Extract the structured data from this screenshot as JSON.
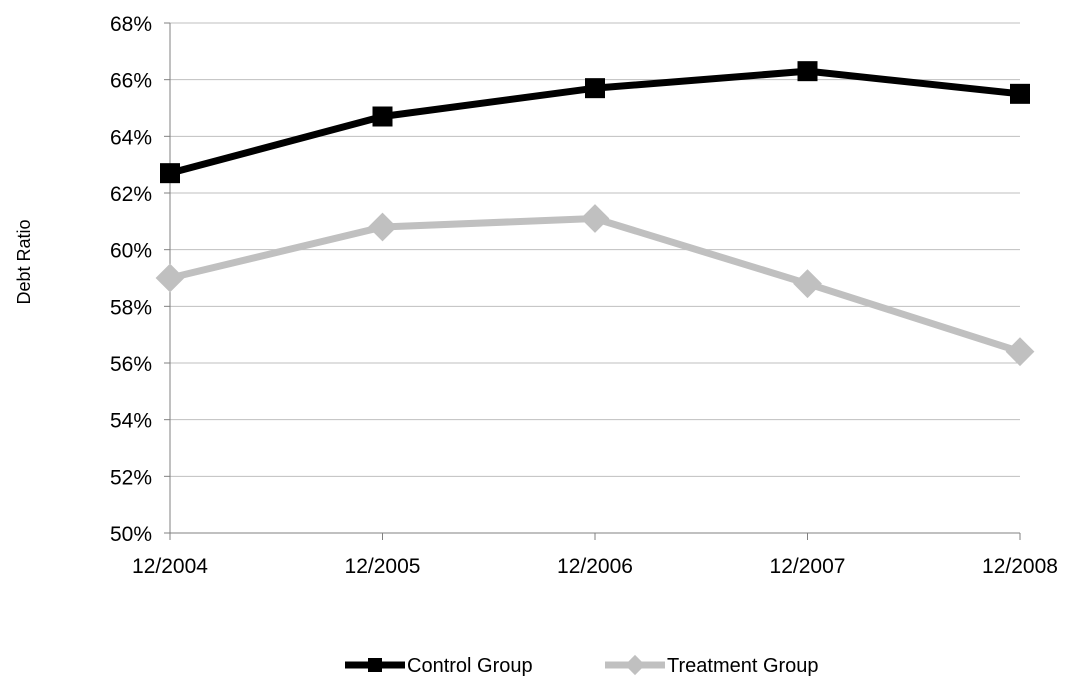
{
  "chart_data": {
    "type": "line",
    "x": [
      "12/2004",
      "12/2005",
      "12/2006",
      "12/2007",
      "12/2008"
    ],
    "series": [
      {
        "name": "Control Group",
        "values": [
          62.7,
          64.7,
          65.7,
          66.3,
          65.5
        ],
        "color": "#000000",
        "marker": "square"
      },
      {
        "name": "Treatment Group",
        "values": [
          59.0,
          60.8,
          61.1,
          58.8,
          56.4
        ],
        "color": "#c0c0c0",
        "marker": "diamond"
      }
    ],
    "ylabel": "Debt Ratio",
    "xlabel": "",
    "ylim": [
      50,
      68
    ],
    "ytick_step": 2,
    "ytick_format": "percent",
    "grid": "horizontal",
    "legend_position": "bottom"
  }
}
